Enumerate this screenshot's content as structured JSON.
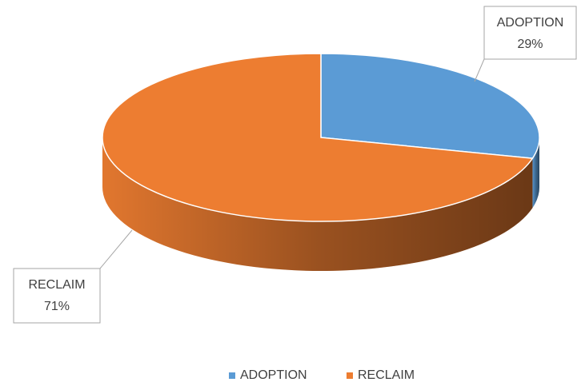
{
  "chart_data": {
    "type": "pie3d",
    "categories": [
      "ADOPTION",
      "RECLAIM"
    ],
    "values": [
      29,
      71
    ],
    "value_labels": [
      "29%",
      "71%"
    ],
    "colors": [
      "#5b9bd5",
      "#ed7d31"
    ],
    "legend": "bottom"
  }
}
